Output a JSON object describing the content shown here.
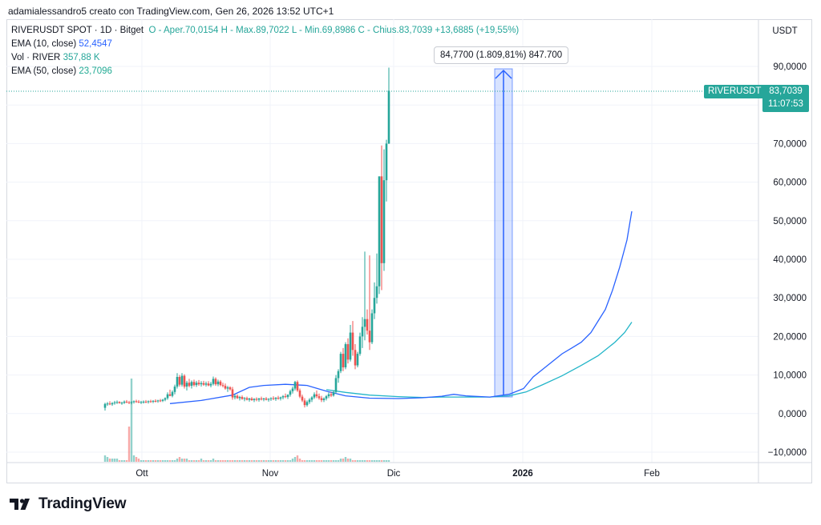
{
  "caption": "adamialessandro5 creato con TradingView.com, Gen 26, 2026 13:52 UTC+1",
  "legend": {
    "symbol": "RIVERUSDT SPOT · 1D · Bitget",
    "ohlc": "O - Aper.70,0154  H - Max.89,7022  L - Min.69,8986  C - Chius.83,7039  +13,6885 (+19,55%)",
    "ema10_label": "EMA (10, close)",
    "ema10_value": "52,4547",
    "vol_label": "Vol · RIVER",
    "vol_value": "357,88 K",
    "ema50_label": "EMA (50, close)",
    "ema50_value": "23,7096"
  },
  "currency": "USDT",
  "measure_tooltip": "84,7700 (1.809,81%) 847.700",
  "last_price": {
    "symbol": "RIVERUSDT",
    "value": "83,7039",
    "countdown": "11:07:53"
  },
  "brand": "TradingView",
  "colors": {
    "up": "#26a69a",
    "down": "#ef5350",
    "ema10": "#2962ff",
    "ema50": "#22b5c8",
    "measure": "#2962ff"
  },
  "chart_data": {
    "type": "candlestick",
    "title": "",
    "y_axis_ticks": [
      "90,0000",
      "80,0000",
      "70,0000",
      "60,0000",
      "50,0000",
      "40,0000",
      "30,0000",
      "20,0000",
      "10,0000",
      "0,0000",
      "−10,0000"
    ],
    "ylim": [
      -10,
      90
    ],
    "x_axis_ticks": [
      "Ott",
      "Nov",
      "Dic",
      "2026",
      "Feb"
    ],
    "candles": [
      [
        1.5,
        2.8,
        0.8,
        2.5
      ],
      [
        2.5,
        3.0,
        2.0,
        2.6
      ],
      [
        2.6,
        3.2,
        2.2,
        2.4
      ],
      [
        2.4,
        3.0,
        2.0,
        2.7
      ],
      [
        2.7,
        3.3,
        2.3,
        2.9
      ],
      [
        2.9,
        3.4,
        2.5,
        3.0
      ],
      [
        3.0,
        3.2,
        2.6,
        2.7
      ],
      [
        2.7,
        3.1,
        2.3,
        2.8
      ],
      [
        2.8,
        3.4,
        2.5,
        3.1
      ],
      [
        3.1,
        3.5,
        2.7,
        2.9
      ],
      [
        2.9,
        3.3,
        2.5,
        2.8
      ],
      [
        2.8,
        3.2,
        2.4,
        3.0
      ],
      [
        3.0,
        3.4,
        2.6,
        3.2
      ],
      [
        3.2,
        3.6,
        2.8,
        3.1
      ],
      [
        3.1,
        3.5,
        2.7,
        2.9
      ],
      [
        2.9,
        3.3,
        2.5,
        3.0
      ],
      [
        3.0,
        3.4,
        2.6,
        3.1
      ],
      [
        3.1,
        3.5,
        2.7,
        3.0
      ],
      [
        3.0,
        3.4,
        2.6,
        3.2
      ],
      [
        3.2,
        3.6,
        2.8,
        3.1
      ],
      [
        3.1,
        3.5,
        2.7,
        3.3
      ],
      [
        3.3,
        3.7,
        2.9,
        3.2
      ],
      [
        3.2,
        3.6,
        2.8,
        3.4
      ],
      [
        3.4,
        3.8,
        3.0,
        3.3
      ],
      [
        3.3,
        3.8,
        3.0,
        3.6
      ],
      [
        3.6,
        4.2,
        3.2,
        4.0
      ],
      [
        4.0,
        5.5,
        3.6,
        5.0
      ],
      [
        5.0,
        6.2,
        4.5,
        4.6
      ],
      [
        4.6,
        6.0,
        4.2,
        5.6
      ],
      [
        5.6,
        7.5,
        5.0,
        7.0
      ],
      [
        7.0,
        10.5,
        6.5,
        9.5
      ],
      [
        9.5,
        10.0,
        7.0,
        7.5
      ],
      [
        7.5,
        10.5,
        7.0,
        9.8
      ],
      [
        9.8,
        10.2,
        6.5,
        7.0
      ],
      [
        7.0,
        8.5,
        6.0,
        8.0
      ],
      [
        8.0,
        9.0,
        6.8,
        7.2
      ],
      [
        7.2,
        8.6,
        6.5,
        8.2
      ],
      [
        8.2,
        8.8,
        7.0,
        7.4
      ],
      [
        7.4,
        8.5,
        6.9,
        8.0
      ],
      [
        8.0,
        8.7,
        7.2,
        7.6
      ],
      [
        7.6,
        8.4,
        7.0,
        7.9
      ],
      [
        7.9,
        8.5,
        7.2,
        7.5
      ],
      [
        7.5,
        8.3,
        7.0,
        7.8
      ],
      [
        7.8,
        8.4,
        7.1,
        7.3
      ],
      [
        7.3,
        8.2,
        6.8,
        7.7
      ],
      [
        7.7,
        9.6,
        7.3,
        9.0
      ],
      [
        9.0,
        9.4,
        7.2,
        7.6
      ],
      [
        7.6,
        8.8,
        7.1,
        8.3
      ],
      [
        8.3,
        8.7,
        7.1,
        7.4
      ],
      [
        7.4,
        8.0,
        6.8,
        7.2
      ],
      [
        7.2,
        7.8,
        6.2,
        6.5
      ],
      [
        6.5,
        7.2,
        5.6,
        6.8
      ],
      [
        6.8,
        7.1,
        6.0,
        6.3
      ],
      [
        6.3,
        6.9,
        3.6,
        4.2
      ],
      [
        4.2,
        5.0,
        3.7,
        4.6
      ],
      [
        4.6,
        5.0,
        3.8,
        4.0
      ],
      [
        4.0,
        4.6,
        3.4,
        4.3
      ],
      [
        4.3,
        4.7,
        3.6,
        3.8
      ],
      [
        3.8,
        4.3,
        3.2,
        4.0
      ],
      [
        4.0,
        4.4,
        3.4,
        3.6
      ],
      [
        3.6,
        4.1,
        3.1,
        3.9
      ],
      [
        3.9,
        4.3,
        3.3,
        3.5
      ],
      [
        3.5,
        4.0,
        3.0,
        3.8
      ],
      [
        3.8,
        4.2,
        3.2,
        3.6
      ],
      [
        3.6,
        4.1,
        3.1,
        3.9
      ],
      [
        3.9,
        4.4,
        3.4,
        3.7
      ],
      [
        3.7,
        4.1,
        3.2,
        3.9
      ],
      [
        3.9,
        4.3,
        3.4,
        3.6
      ],
      [
        3.6,
        4.0,
        3.1,
        3.8
      ],
      [
        3.8,
        4.2,
        3.3,
        4.0
      ],
      [
        4.0,
        4.5,
        3.5,
        3.8
      ],
      [
        3.8,
        4.3,
        3.3,
        4.1
      ],
      [
        4.1,
        4.6,
        3.6,
        3.9
      ],
      [
        3.9,
        4.4,
        3.4,
        4.2
      ],
      [
        4.2,
        4.8,
        3.7,
        4.5
      ],
      [
        4.5,
        5.2,
        4.0,
        4.3
      ],
      [
        4.3,
        5.0,
        3.8,
        4.9
      ],
      [
        4.9,
        6.2,
        4.4,
        5.8
      ],
      [
        5.8,
        7.0,
        5.2,
        6.5
      ],
      [
        6.5,
        8.5,
        6.0,
        8.2
      ],
      [
        8.2,
        8.6,
        5.6,
        6.0
      ],
      [
        6.0,
        6.5,
        4.0,
        4.4
      ],
      [
        4.4,
        4.9,
        3.0,
        3.4
      ],
      [
        3.4,
        4.0,
        1.6,
        2.2
      ],
      [
        2.2,
        3.4,
        1.8,
        3.0
      ],
      [
        3.0,
        4.0,
        2.5,
        3.6
      ],
      [
        3.6,
        4.5,
        3.0,
        4.2
      ],
      [
        4.2,
        5.5,
        3.8,
        5.0
      ],
      [
        5.0,
        6.0,
        4.0,
        4.5
      ],
      [
        4.5,
        5.2,
        3.6,
        4.0
      ],
      [
        4.0,
        4.6,
        3.0,
        3.5
      ],
      [
        3.5,
        4.2,
        3.0,
        3.9
      ],
      [
        3.9,
        4.8,
        3.4,
        4.5
      ],
      [
        4.5,
        5.5,
        4.0,
        5.0
      ],
      [
        5.0,
        5.6,
        4.3,
        4.7
      ],
      [
        4.7,
        6.0,
        4.4,
        5.6
      ],
      [
        5.6,
        10.0,
        5.2,
        9.2
      ],
      [
        9.2,
        11.5,
        8.0,
        11.0
      ],
      [
        11.0,
        16.0,
        10.5,
        15.5
      ],
      [
        15.5,
        17.0,
        11.0,
        12.0
      ],
      [
        12.0,
        18.5,
        11.5,
        18.0
      ],
      [
        18.0,
        19.5,
        13.0,
        14.0
      ],
      [
        14.0,
        23.0,
        13.5,
        21.0
      ],
      [
        21.0,
        24.0,
        15.0,
        16.5
      ],
      [
        16.5,
        18.0,
        11.5,
        12.5
      ],
      [
        12.5,
        16.0,
        12.0,
        15.5
      ],
      [
        15.5,
        21.0,
        15.0,
        20.0
      ],
      [
        20.0,
        25.0,
        17.0,
        22.5
      ],
      [
        22.5,
        42.0,
        19.0,
        24.5
      ],
      [
        24.5,
        27.0,
        20.5,
        21.5
      ],
      [
        21.5,
        41.0,
        16.5,
        18.5
      ],
      [
        18.5,
        27.0,
        18.0,
        26.0
      ],
      [
        26.0,
        34.0,
        24.5,
        30.0
      ],
      [
        30.0,
        41.5,
        28.5,
        33.0
      ],
      [
        33.0,
        61.5,
        31.0,
        61.5
      ],
      [
        61.5,
        69.5,
        32.0,
        39.0
      ],
      [
        39.0,
        68.5,
        37.0,
        60.5
      ],
      [
        60.5,
        71.0,
        55.0,
        70.0
      ],
      [
        70.0,
        89.7,
        69.9,
        83.7
      ]
    ],
    "ema10": [
      [
        27,
        2.6
      ],
      [
        40,
        3.4
      ],
      [
        53,
        4.8
      ],
      [
        60,
        6.8
      ],
      [
        66,
        7.3
      ],
      [
        75,
        7.6
      ],
      [
        84,
        7.3
      ],
      [
        92,
        5.8
      ],
      [
        100,
        4.6
      ],
      [
        110,
        4.0
      ],
      [
        122,
        3.9
      ],
      [
        132,
        4.1
      ],
      [
        140,
        4.5
      ],
      [
        145,
        5.0
      ],
      [
        150,
        4.6
      ],
      [
        160,
        4.3
      ],
      [
        168,
        5.0
      ],
      [
        174,
        6.5
      ],
      [
        178,
        9.5
      ],
      [
        182,
        11.5
      ],
      [
        186,
        13.5
      ],
      [
        190,
        15.5
      ],
      [
        194,
        17.0
      ],
      [
        198,
        18.5
      ],
      [
        202,
        21.0
      ],
      [
        205,
        24.0
      ],
      [
        208,
        27.0
      ],
      [
        211,
        32.0
      ],
      [
        214,
        38.0
      ],
      [
        217,
        45.0
      ],
      [
        219,
        52.45
      ]
    ],
    "ema50": [
      [
        92,
        6.2
      ],
      [
        100,
        5.5
      ],
      [
        110,
        4.8
      ],
      [
        122,
        4.4
      ],
      [
        132,
        4.2
      ],
      [
        140,
        4.3
      ],
      [
        150,
        4.3
      ],
      [
        160,
        4.3
      ],
      [
        168,
        4.6
      ],
      [
        175,
        5.6
      ],
      [
        182,
        7.5
      ],
      [
        190,
        9.8
      ],
      [
        198,
        12.5
      ],
      [
        205,
        15.0
      ],
      [
        212,
        18.5
      ],
      [
        216,
        21.0
      ],
      [
        219,
        23.71
      ]
    ],
    "volume": [
      4,
      3,
      2,
      2,
      2,
      2,
      1,
      1,
      1,
      1,
      22,
      52,
      4,
      3,
      2,
      1,
      1,
      1,
      1,
      1,
      1,
      1,
      1,
      1,
      1,
      1,
      1,
      1,
      1,
      1,
      2,
      3,
      2,
      2,
      2,
      1,
      1,
      1,
      1,
      1,
      2,
      1,
      1,
      1,
      1,
      2,
      1,
      1,
      1,
      1,
      1,
      1,
      1,
      1,
      1,
      1,
      1,
      1,
      1,
      1,
      1,
      1,
      1,
      1,
      1,
      1,
      1,
      1,
      1,
      1,
      1,
      1,
      1,
      1,
      1,
      1,
      1,
      1,
      2,
      3,
      4,
      2,
      1,
      1,
      1,
      1,
      1,
      1,
      1,
      1,
      1,
      1,
      1,
      1,
      1,
      1,
      1,
      1,
      2,
      2,
      3,
      2,
      2,
      1,
      1,
      1,
      1,
      1,
      1,
      1,
      1,
      1,
      1,
      1,
      1,
      1,
      1,
      1,
      1,
      1
    ]
  }
}
